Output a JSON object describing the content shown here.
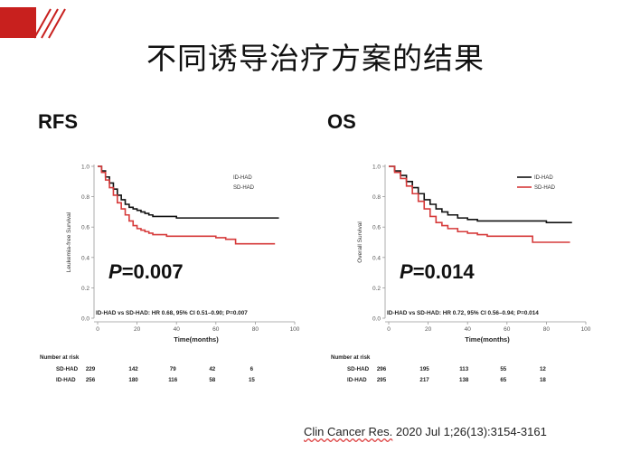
{
  "slide": {
    "title": "不同诱导治疗方案的结果",
    "left_label": "RFS",
    "right_label": "OS",
    "citation_part1": "Clin Cancer Res.",
    "citation_part2": " 2020 Jul 1;26(13):3154-3161",
    "accent_color": "#c8201e"
  },
  "chart_data": [
    {
      "type": "line",
      "ylabel": "Leukemia-free Survival",
      "xlabel": "Time(months)",
      "xlim": [
        0,
        100
      ],
      "ylim": [
        0,
        1.0
      ],
      "xticks": [
        0,
        20,
        40,
        60,
        80,
        100
      ],
      "yticks": [
        0.0,
        0.2,
        0.4,
        0.6,
        0.8,
        1.0
      ],
      "legend_position": "top-right",
      "p_value_label": "P",
      "p_value_text": "=0.007",
      "hr_text": "ID-HAD vs SD-HAD: HR 0.68, 95% CI 0.51–0.90; P=0.007",
      "series": [
        {
          "name": "ID-HAD",
          "color": "#111111",
          "x": [
            0,
            2,
            4,
            6,
            8,
            10,
            12,
            14,
            16,
            18,
            20,
            22,
            24,
            26,
            28,
            30,
            35,
            40,
            50,
            60,
            70,
            80,
            92
          ],
          "values": [
            1.0,
            0.97,
            0.93,
            0.89,
            0.85,
            0.81,
            0.78,
            0.75,
            0.73,
            0.72,
            0.71,
            0.7,
            0.69,
            0.68,
            0.67,
            0.67,
            0.67,
            0.66,
            0.66,
            0.66,
            0.66,
            0.66,
            0.66
          ]
        },
        {
          "name": "SD-HAD",
          "color": "#d63a3a",
          "x": [
            0,
            2,
            4,
            6,
            8,
            10,
            12,
            14,
            16,
            18,
            20,
            22,
            24,
            26,
            28,
            30,
            35,
            40,
            50,
            60,
            65,
            70,
            75,
            80,
            90
          ],
          "values": [
            1.0,
            0.96,
            0.91,
            0.86,
            0.81,
            0.76,
            0.72,
            0.68,
            0.64,
            0.61,
            0.59,
            0.58,
            0.57,
            0.56,
            0.55,
            0.55,
            0.54,
            0.54,
            0.54,
            0.53,
            0.52,
            0.49,
            0.49,
            0.49,
            0.49
          ]
        }
      ],
      "risk_table": {
        "title": "Number at risk",
        "rows": [
          {
            "label": "SD-HAD",
            "counts": [
              "229",
              "142",
              "79",
              "42",
              "6"
            ]
          },
          {
            "label": "ID-HAD",
            "counts": [
              "256",
              "180",
              "116",
              "58",
              "15"
            ]
          }
        ]
      }
    },
    {
      "type": "line",
      "ylabel": "Overall Survival",
      "xlabel": "Time(months)",
      "xlim": [
        0,
        100
      ],
      "ylim": [
        0,
        1.0
      ],
      "xticks": [
        0,
        20,
        40,
        60,
        80,
        100
      ],
      "yticks": [
        0.0,
        0.2,
        0.4,
        0.6,
        0.8,
        1.0
      ],
      "legend_position": "top-right",
      "p_value_label": "P",
      "p_value_text": "=0.014",
      "hr_text": "ID-HAD vs SD-HAD: HR 0.72, 95% CI 0.56–0.94; P=0.014",
      "series": [
        {
          "name": "ID-HAD",
          "color": "#111111",
          "x": [
            0,
            3,
            6,
            9,
            12,
            15,
            18,
            21,
            24,
            27,
            30,
            35,
            40,
            45,
            50,
            60,
            70,
            80,
            93
          ],
          "values": [
            1.0,
            0.97,
            0.94,
            0.9,
            0.86,
            0.82,
            0.78,
            0.75,
            0.72,
            0.7,
            0.68,
            0.66,
            0.65,
            0.64,
            0.64,
            0.64,
            0.64,
            0.63,
            0.63
          ]
        },
        {
          "name": "SD-HAD",
          "color": "#d63a3a",
          "x": [
            0,
            3,
            6,
            9,
            12,
            15,
            18,
            21,
            24,
            27,
            30,
            35,
            40,
            45,
            50,
            60,
            70,
            73,
            80,
            92
          ],
          "values": [
            1.0,
            0.96,
            0.92,
            0.87,
            0.82,
            0.77,
            0.72,
            0.67,
            0.63,
            0.61,
            0.59,
            0.57,
            0.56,
            0.55,
            0.54,
            0.54,
            0.54,
            0.5,
            0.5,
            0.5
          ]
        }
      ],
      "risk_table": {
        "title": "Number at risk",
        "rows": [
          {
            "label": "SD-HAD",
            "counts": [
              "296",
              "195",
              "113",
              "55",
              "12"
            ]
          },
          {
            "label": "ID-HAD",
            "counts": [
              "295",
              "217",
              "138",
              "65",
              "18"
            ]
          }
        ]
      }
    }
  ]
}
